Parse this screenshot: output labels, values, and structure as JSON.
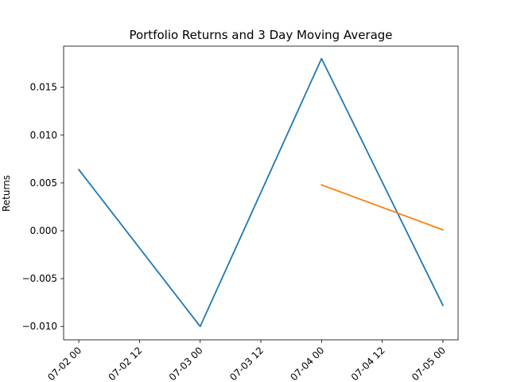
{
  "chart_data": {
    "type": "line",
    "title": "Portfolio Returns and 3 Day Moving Average",
    "xlabel": "",
    "ylabel": "Returns",
    "x_ticks": [
      "07-02 00",
      "07-02 12",
      "07-03 00",
      "07-03 12",
      "07-04 00",
      "07-04 12",
      "07-05 00"
    ],
    "y_ticks": [
      "0.015",
      "0.010",
      "0.005",
      "0.000",
      "−0.005",
      "−0.010"
    ],
    "y_tick_values": [
      0.015,
      0.01,
      0.005,
      0.0,
      -0.005,
      -0.01
    ],
    "xlim": [
      "07-01 21",
      "07-05 03"
    ],
    "ylim": [
      -0.0114,
      0.0193
    ],
    "grid": false,
    "series": [
      {
        "color": "#1f77b4",
        "x": [
          "07-02 00",
          "07-03 00",
          "07-04 00",
          "07-05 00"
        ],
        "values": [
          0.0064,
          -0.01,
          0.018,
          -0.0078
        ]
      },
      {
        "color": "#ff7f0e",
        "x": [
          "07-04 00",
          "07-05 00"
        ],
        "values": [
          0.0048,
          0.0001
        ]
      }
    ]
  }
}
